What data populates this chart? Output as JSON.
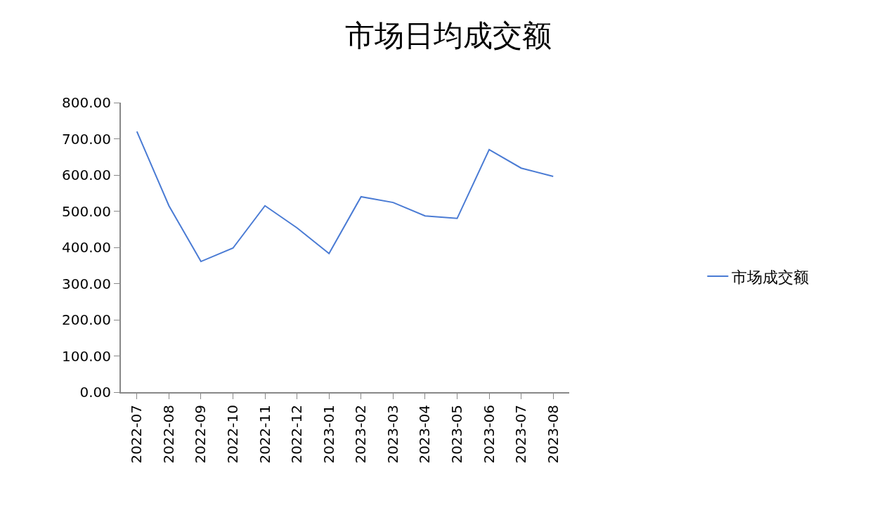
{
  "chart_data": {
    "type": "line",
    "title": "市场日均成交额",
    "categories": [
      "2022-07",
      "2022-08",
      "2022-09",
      "2022-10",
      "2022-11",
      "2022-12",
      "2023-01",
      "2023-02",
      "2023-03",
      "2023-04",
      "2023-05",
      "2023-06",
      "2023-07",
      "2023-08"
    ],
    "series": [
      {
        "name": "市场成交额",
        "color": "#4a7bd4",
        "values": [
          720,
          515,
          361,
          398,
          515,
          454,
          383,
          540,
          524,
          487,
          480,
          670,
          619,
          596
        ]
      }
    ],
    "ylim": [
      0,
      800
    ],
    "yticks": [
      {
        "value": 0,
        "label": "0.00"
      },
      {
        "value": 100,
        "label": "100.00"
      },
      {
        "value": 200,
        "label": "200.00"
      },
      {
        "value": 300,
        "label": "300.00"
      },
      {
        "value": 400,
        "label": "400.00"
      },
      {
        "value": 500,
        "label": "500.00"
      },
      {
        "value": 600,
        "label": "600.00"
      },
      {
        "value": 700,
        "label": "700.00"
      },
      {
        "value": 800,
        "label": "800.00"
      }
    ],
    "legend": "right",
    "marker": "none",
    "line_style": "solid"
  }
}
